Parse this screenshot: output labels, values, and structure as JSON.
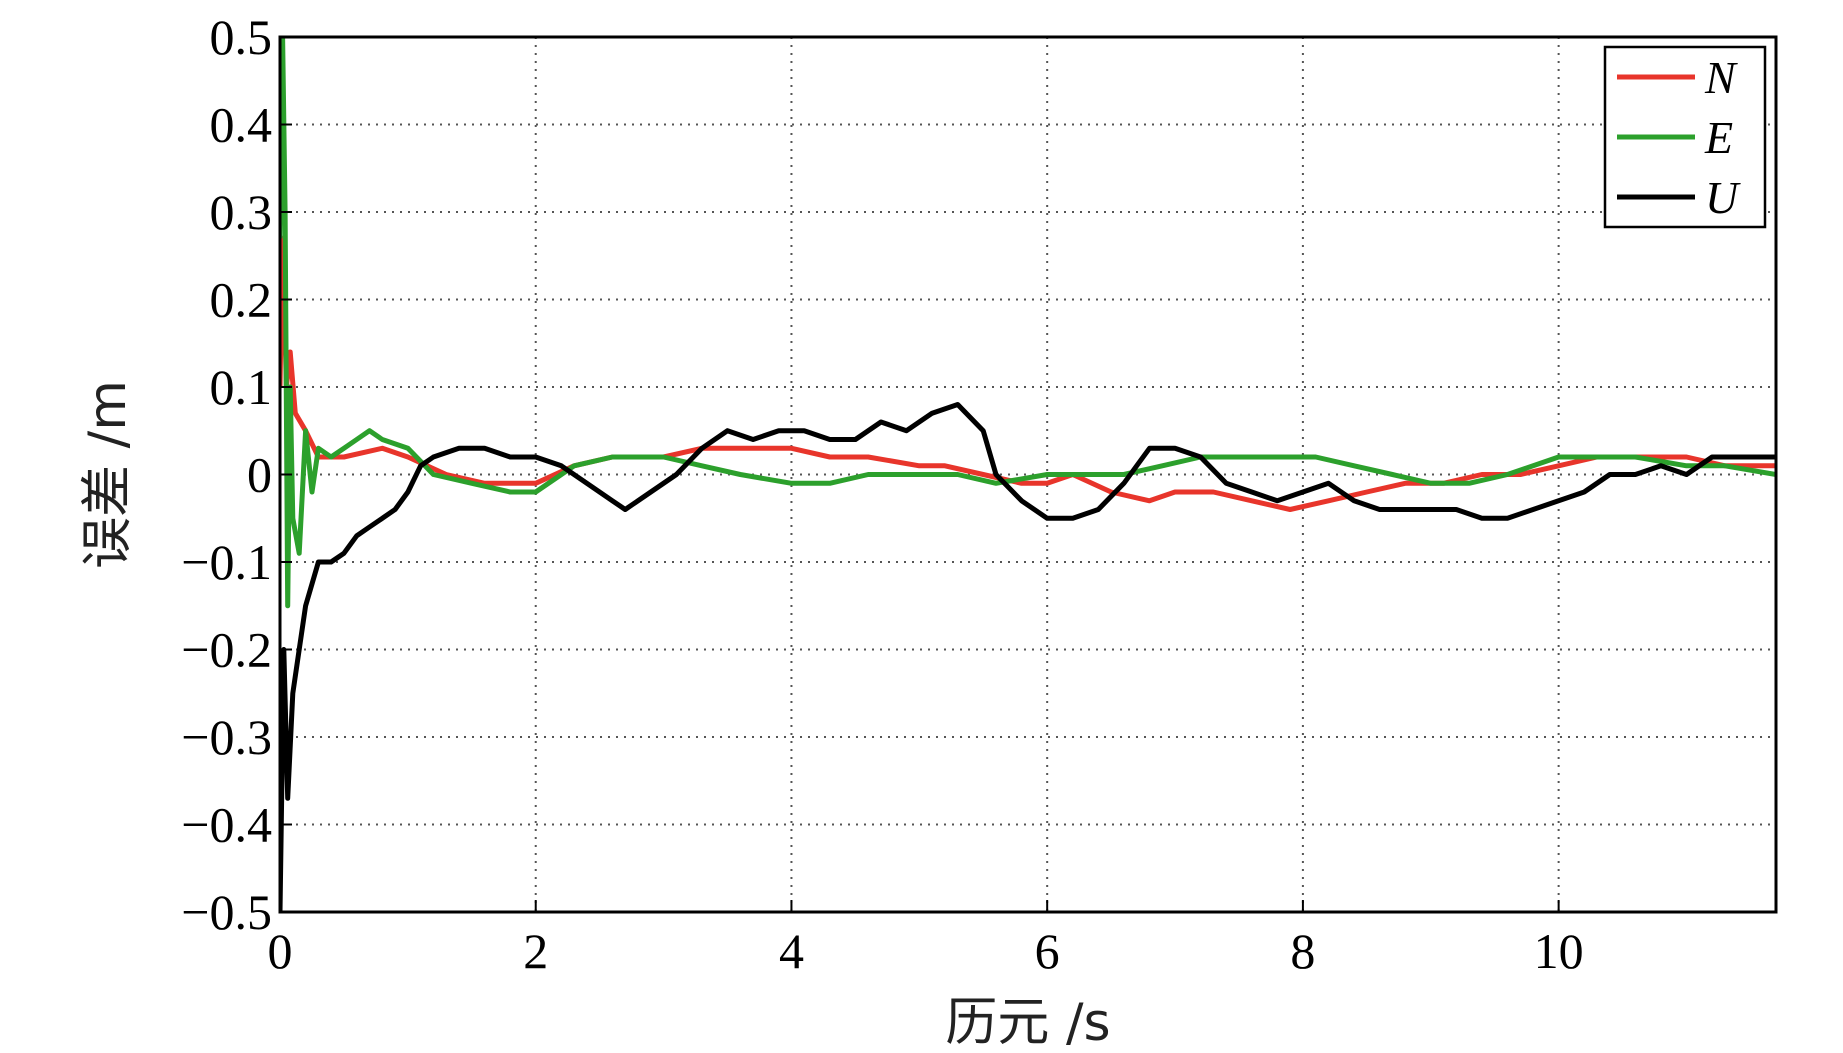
{
  "chart_data": {
    "type": "line",
    "title": "",
    "xlabel": "历元 /s",
    "ylabel": "误差 /m",
    "xlim": [
      0,
      11.7
    ],
    "ylim": [
      -0.5,
      0.5
    ],
    "x_ticks": [
      0,
      2,
      4,
      6,
      8,
      10
    ],
    "x_tick_labels": [
      "0",
      "2",
      "4",
      "6",
      "8",
      "10"
    ],
    "y_ticks": [
      0.5,
      0.4,
      0.3,
      0.2,
      0.1,
      0,
      -0.1,
      -0.2,
      -0.3,
      -0.4,
      -0.5
    ],
    "y_tick_labels": [
      "0.5",
      "0.4",
      "0.3",
      "0.2",
      "0.1",
      "0",
      "−0.1",
      "−0.2",
      "−0.3",
      "−0.4",
      "−0.5"
    ],
    "grid": true,
    "legend_position": "top-right",
    "series": [
      {
        "name": "N",
        "color": "#e8352b",
        "x": [
          0,
          0.02,
          0.05,
          0.08,
          0.12,
          0.2,
          0.3,
          0.5,
          0.8,
          1.0,
          1.3,
          1.6,
          2.0,
          2.3,
          2.6,
          3.0,
          3.3,
          3.6,
          4.0,
          4.3,
          4.6,
          5.0,
          5.2,
          5.5,
          5.8,
          6.0,
          6.2,
          6.5,
          6.8,
          7.0,
          7.3,
          7.6,
          7.9,
          8.2,
          8.5,
          8.8,
          9.1,
          9.4,
          9.7,
          10.0,
          10.3,
          10.6,
          11.0,
          11.3,
          11.7
        ],
        "y": [
          0.1,
          0.27,
          0.1,
          0.14,
          0.07,
          0.05,
          0.02,
          0.02,
          0.03,
          0.02,
          0.0,
          -0.01,
          -0.01,
          0.01,
          0.02,
          0.02,
          0.03,
          0.03,
          0.03,
          0.02,
          0.02,
          0.01,
          0.01,
          0.0,
          -0.01,
          -0.01,
          0.0,
          -0.02,
          -0.03,
          -0.02,
          -0.02,
          -0.03,
          -0.04,
          -0.03,
          -0.02,
          -0.01,
          -0.01,
          0.0,
          0.0,
          0.01,
          0.02,
          0.02,
          0.02,
          0.01,
          0.01
        ]
      },
      {
        "name": "E",
        "color": "#2ca02c",
        "x": [
          0,
          0.02,
          0.04,
          0.06,
          0.08,
          0.1,
          0.15,
          0.2,
          0.25,
          0.3,
          0.4,
          0.5,
          0.6,
          0.7,
          0.8,
          1.0,
          1.2,
          1.5,
          1.8,
          2.0,
          2.3,
          2.6,
          3.0,
          3.3,
          3.6,
          4.0,
          4.3,
          4.6,
          5.0,
          5.3,
          5.6,
          6.0,
          6.3,
          6.6,
          6.9,
          7.2,
          7.5,
          7.8,
          8.1,
          8.4,
          8.7,
          9.0,
          9.3,
          9.6,
          10.0,
          10.3,
          10.6,
          11.0,
          11.3,
          11.7
        ],
        "y": [
          0.27,
          0.5,
          0.3,
          -0.15,
          0.1,
          -0.05,
          -0.09,
          0.05,
          -0.02,
          0.03,
          0.02,
          0.03,
          0.04,
          0.05,
          0.04,
          0.03,
          0.0,
          -0.01,
          -0.02,
          -0.02,
          0.01,
          0.02,
          0.02,
          0.01,
          0.0,
          -0.01,
          -0.01,
          0.0,
          0.0,
          0.0,
          -0.01,
          0.0,
          0.0,
          0.0,
          0.01,
          0.02,
          0.02,
          0.02,
          0.02,
          0.01,
          0.0,
          -0.01,
          -0.01,
          0.0,
          0.02,
          0.02,
          0.02,
          0.01,
          0.01,
          0.0
        ]
      },
      {
        "name": "U",
        "color": "#000000",
        "x": [
          0,
          0.03,
          0.06,
          0.1,
          0.15,
          0.2,
          0.3,
          0.4,
          0.5,
          0.6,
          0.7,
          0.8,
          0.9,
          1.0,
          1.1,
          1.2,
          1.4,
          1.6,
          1.8,
          2.0,
          2.2,
          2.4,
          2.6,
          2.7,
          2.9,
          3.1,
          3.3,
          3.5,
          3.7,
          3.9,
          4.1,
          4.3,
          4.5,
          4.7,
          4.9,
          5.1,
          5.3,
          5.5,
          5.6,
          5.8,
          6.0,
          6.2,
          6.4,
          6.6,
          6.8,
          7.0,
          7.2,
          7.4,
          7.6,
          7.8,
          8.0,
          8.2,
          8.4,
          8.6,
          8.8,
          9.0,
          9.2,
          9.4,
          9.6,
          9.8,
          10.0,
          10.2,
          10.4,
          10.6,
          10.8,
          11.0,
          11.2,
          11.4,
          11.7
        ],
        "y": [
          -0.5,
          -0.2,
          -0.37,
          -0.25,
          -0.2,
          -0.15,
          -0.1,
          -0.1,
          -0.09,
          -0.07,
          -0.06,
          -0.05,
          -0.04,
          -0.02,
          0.01,
          0.02,
          0.03,
          0.03,
          0.02,
          0.02,
          0.01,
          -0.01,
          -0.03,
          -0.04,
          -0.02,
          0.0,
          0.03,
          0.05,
          0.04,
          0.05,
          0.05,
          0.04,
          0.04,
          0.06,
          0.05,
          0.07,
          0.08,
          0.05,
          0.0,
          -0.03,
          -0.05,
          -0.05,
          -0.04,
          -0.01,
          0.03,
          0.03,
          0.02,
          -0.01,
          -0.02,
          -0.03,
          -0.02,
          -0.01,
          -0.03,
          -0.04,
          -0.04,
          -0.04,
          -0.04,
          -0.05,
          -0.05,
          -0.04,
          -0.03,
          -0.02,
          0.0,
          0.0,
          0.01,
          0.0,
          0.02,
          0.02,
          0.02
        ]
      }
    ]
  }
}
